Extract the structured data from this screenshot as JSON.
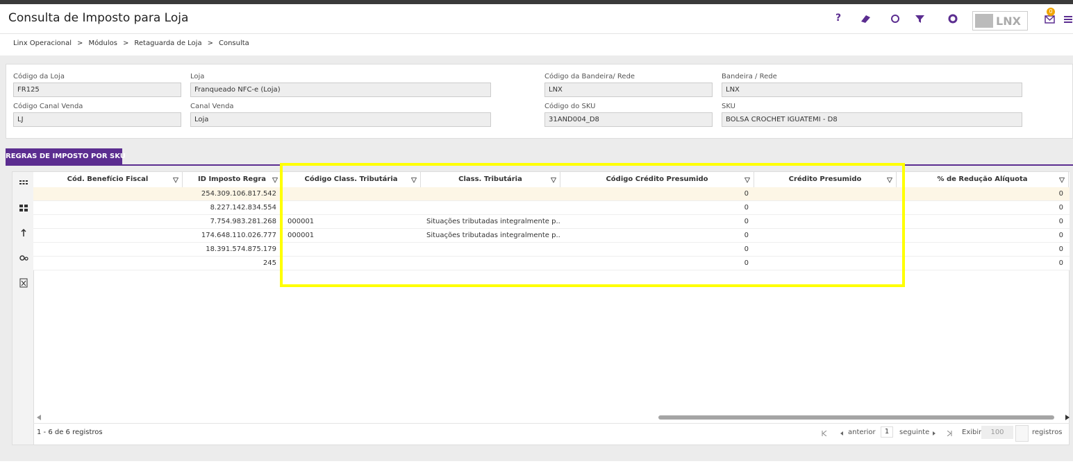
{
  "header": {
    "title": "Consulta de Imposto para Loja",
    "help_icon": "?",
    "logo": "LNX",
    "notification_count": "0"
  },
  "breadcrumb": {
    "items": [
      "Linx Operacional",
      "Módulos",
      "Retaguarda de Loja",
      "Consulta"
    ],
    "separator": ">"
  },
  "form": {
    "fields": [
      {
        "label": "Código da Loja",
        "value": "FR125"
      },
      {
        "label": "Loja",
        "value": "Franqueado NFC-e (Loja)"
      },
      {
        "label": "Código da Bandeira/ Rede",
        "value": "LNX"
      },
      {
        "label": "Bandeira / Rede",
        "value": "LNX"
      },
      {
        "label": "Código Canal Venda",
        "value": "LJ"
      },
      {
        "label": "Canal Venda",
        "value": "Loja"
      },
      {
        "label": "Código do SKU",
        "value": "31AND004_D8"
      },
      {
        "label": "SKU",
        "value": "BOLSA CROCHET IGUATEMI - D8"
      }
    ]
  },
  "tab": {
    "label": "REGRAS DE IMPOSTO POR SKU"
  },
  "table": {
    "columns": [
      "Cód. Benefício Fiscal",
      "ID Imposto Regra",
      "Código Class. Tributária",
      "Class. Tributária",
      "Código Crédito Presumido",
      "Crédito Presumido",
      "% de Redução Alíquota"
    ],
    "rows": [
      [
        null,
        "254.309.106.817.542",
        null,
        null,
        "0",
        null,
        "0"
      ],
      [
        null,
        "8.227.142.834.554",
        null,
        null,
        "0",
        null,
        "0"
      ],
      [
        null,
        "7.754.983.281.268",
        "000001",
        "Situações tributadas integralmente p...",
        "0",
        null,
        "0"
      ],
      [
        null,
        "174.648.110.026.777",
        "000001",
        "Situações tributadas integralmente p...",
        "0",
        null,
        "0"
      ],
      [
        null,
        "18.391.574.875.179",
        null,
        null,
        "0",
        null,
        "0"
      ],
      [
        null,
        "245",
        null,
        null,
        "0",
        null,
        "0"
      ]
    ]
  },
  "footer": {
    "summary": "1 - 6 de 6 registros",
    "previous": "anterior",
    "page": "1",
    "next": "seguinte",
    "show": "Exibir",
    "page_size": "100",
    "records": "registros"
  }
}
